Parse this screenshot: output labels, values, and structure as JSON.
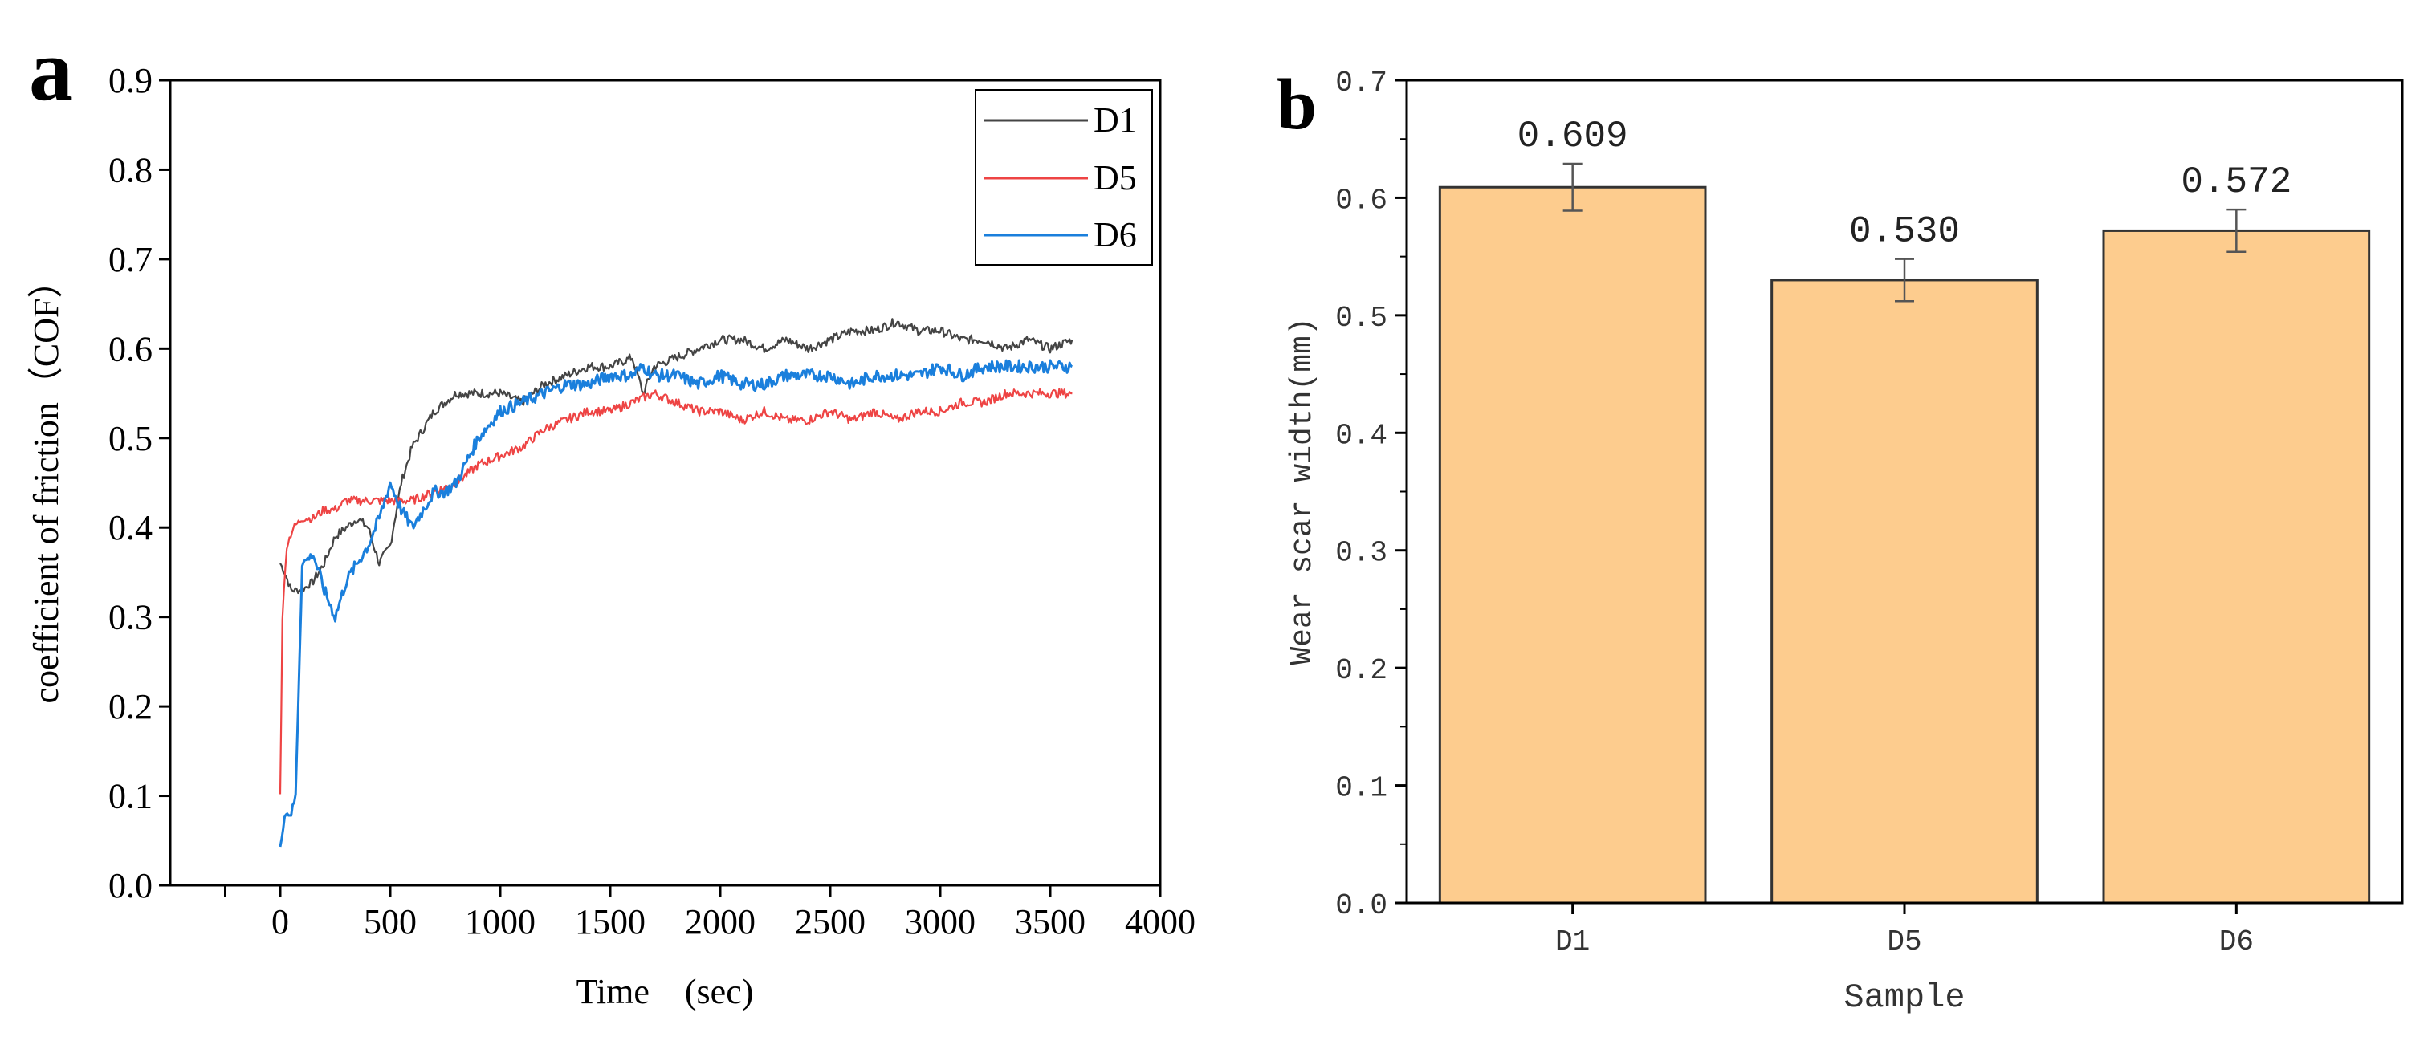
{
  "chart_data": [
    {
      "panel_label": "a",
      "type": "line",
      "xlabel": "Time　(sec)",
      "ylabel": "coefficient of friction（COF）",
      "xlim": [
        -500,
        4000
      ],
      "ylim": [
        0.0,
        0.9
      ],
      "x_ticks": [
        "0",
        "500",
        "1000",
        "1500",
        "2000",
        "2500",
        "3000",
        "3500",
        "4000"
      ],
      "x_tick_values": [
        0,
        500,
        1000,
        1500,
        2000,
        2500,
        3000,
        3500,
        4000
      ],
      "y_ticks": [
        "0.0",
        "0.1",
        "0.2",
        "0.3",
        "0.4",
        "0.5",
        "0.6",
        "0.7",
        "0.8",
        "0.9"
      ],
      "y_tick_values": [
        0.0,
        0.1,
        0.2,
        0.3,
        0.4,
        0.5,
        0.6,
        0.7,
        0.8,
        0.9
      ],
      "legend_position": "top-right",
      "series": [
        {
          "name": "D1",
          "color": "#444444",
          "x": [
            0,
            20,
            50,
            100,
            150,
            200,
            250,
            300,
            350,
            400,
            450,
            500,
            550,
            600,
            650,
            700,
            800,
            900,
            1000,
            1100,
            1200,
            1300,
            1400,
            1500,
            1600,
            1650,
            1700,
            1800,
            1900,
            2000,
            2100,
            2200,
            2300,
            2400,
            2500,
            2600,
            2700,
            2800,
            2900,
            3000,
            3100,
            3200,
            3300,
            3400,
            3500,
            3600
          ],
          "values": [
            0.36,
            0.35,
            0.33,
            0.33,
            0.34,
            0.36,
            0.39,
            0.4,
            0.41,
            0.4,
            0.36,
            0.38,
            0.45,
            0.49,
            0.51,
            0.53,
            0.55,
            0.55,
            0.55,
            0.54,
            0.56,
            0.57,
            0.58,
            0.58,
            0.59,
            0.55,
            0.58,
            0.59,
            0.6,
            0.61,
            0.61,
            0.6,
            0.61,
            0.6,
            0.61,
            0.62,
            0.62,
            0.63,
            0.62,
            0.62,
            0.61,
            0.61,
            0.6,
            0.61,
            0.6,
            0.61
          ]
        },
        {
          "name": "D5",
          "color": "#ee4444",
          "x": [
            0,
            10,
            30,
            60,
            100,
            150,
            200,
            250,
            300,
            400,
            500,
            600,
            700,
            800,
            900,
            1000,
            1100,
            1200,
            1300,
            1400,
            1500,
            1600,
            1700,
            1800,
            1900,
            2000,
            2100,
            2200,
            2300,
            2400,
            2500,
            2600,
            2700,
            2800,
            2900,
            3000,
            3100,
            3200,
            3300,
            3400,
            3500,
            3600
          ],
          "values": [
            0.1,
            0.3,
            0.38,
            0.4,
            0.41,
            0.41,
            0.42,
            0.42,
            0.43,
            0.43,
            0.43,
            0.43,
            0.44,
            0.45,
            0.47,
            0.48,
            0.49,
            0.51,
            0.52,
            0.53,
            0.53,
            0.54,
            0.55,
            0.54,
            0.53,
            0.53,
            0.52,
            0.53,
            0.52,
            0.52,
            0.53,
            0.52,
            0.53,
            0.52,
            0.53,
            0.53,
            0.54,
            0.54,
            0.55,
            0.55,
            0.55,
            0.55
          ]
        },
        {
          "name": "D6",
          "color": "#1a7fdc",
          "x": [
            0,
            20,
            50,
            70,
            100,
            150,
            200,
            250,
            300,
            350,
            400,
            450,
            500,
            550,
            600,
            650,
            700,
            750,
            800,
            900,
            1000,
            1100,
            1200,
            1300,
            1400,
            1500,
            1600,
            1650,
            1700,
            1800,
            1900,
            2000,
            2100,
            2200,
            2300,
            2400,
            2500,
            2600,
            2700,
            2800,
            2900,
            3000,
            3100,
            3200,
            3300,
            3400,
            3500,
            3600
          ],
          "values": [
            0.04,
            0.08,
            0.08,
            0.1,
            0.36,
            0.37,
            0.33,
            0.3,
            0.34,
            0.36,
            0.38,
            0.41,
            0.45,
            0.42,
            0.4,
            0.42,
            0.44,
            0.44,
            0.45,
            0.5,
            0.53,
            0.54,
            0.55,
            0.56,
            0.56,
            0.57,
            0.57,
            0.58,
            0.57,
            0.57,
            0.56,
            0.57,
            0.56,
            0.56,
            0.57,
            0.57,
            0.57,
            0.56,
            0.57,
            0.57,
            0.57,
            0.58,
            0.57,
            0.58,
            0.58,
            0.58,
            0.58,
            0.58
          ]
        }
      ]
    },
    {
      "panel_label": "b",
      "type": "bar",
      "xlabel": "Sample",
      "ylabel": "Wear scar width(mm)",
      "ylim": [
        0.0,
        0.7
      ],
      "y_ticks": [
        "0.0",
        "0.1",
        "0.2",
        "0.3",
        "0.4",
        "0.5",
        "0.6",
        "0.7"
      ],
      "y_tick_values": [
        0.0,
        0.1,
        0.2,
        0.3,
        0.4,
        0.5,
        0.6,
        0.7
      ],
      "categories": [
        "D1",
        "D5",
        "D6"
      ],
      "values": [
        0.609,
        0.53,
        0.572
      ],
      "data_labels": [
        "0.609",
        "0.530",
        "0.572"
      ],
      "errors": [
        0.02,
        0.018,
        0.018
      ],
      "bar_color": "#fdcc8e",
      "bar_edge_color": "#333333"
    }
  ]
}
